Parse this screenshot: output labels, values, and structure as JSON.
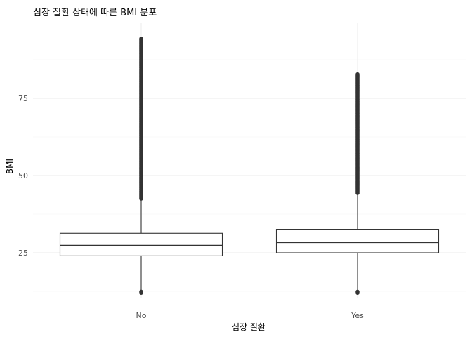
{
  "chart_data": {
    "type": "box",
    "title": "심장 질환 상태에 따른 BMI 분포",
    "xlabel": "심장 질환",
    "ylabel": "BMI",
    "ylim": [
      10,
      98
    ],
    "yticks": [
      25,
      50,
      75
    ],
    "ytick_labels": [
      "25",
      "50",
      "75"
    ],
    "grid": true,
    "categories": [
      "No",
      "Yes"
    ],
    "boxes": [
      {
        "category": "No",
        "whisker_low": 12.5,
        "q1": 24,
        "median": 27.3,
        "q3": 31.3,
        "whisker_high": 42.2,
        "outliers_low": [
          12.0
        ],
        "outliers_high_min": 42.5,
        "outliers_high_max": 94.5
      },
      {
        "category": "Yes",
        "whisker_low": 12.5,
        "q1": 25,
        "median": 28.4,
        "q3": 32.6,
        "whisker_high": 44.0,
        "outliers_low": [
          12.0
        ],
        "outliers_high_min": 44.3,
        "outliers_high_max": 83.0
      }
    ]
  }
}
